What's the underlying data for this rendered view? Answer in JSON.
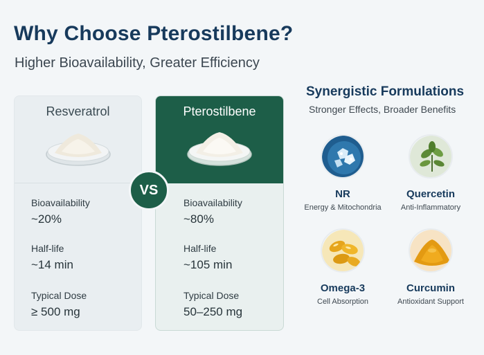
{
  "header": {
    "title": "Why Choose Pterostilbene?",
    "subtitle": "Higher Bioavailability, Greater Efficiency"
  },
  "comparison": {
    "vs_label": "VS",
    "left": {
      "name": "Resveratrol",
      "metrics": [
        {
          "label": "Bioavailability",
          "value": "~20%"
        },
        {
          "label": "Half-life",
          "value": "~14 min"
        },
        {
          "label": "Typical Dose",
          "value": "≥ 500 mg"
        }
      ]
    },
    "right": {
      "name": "Pterostilbene",
      "metrics": [
        {
          "label": "Bioavailability",
          "value": "~80%"
        },
        {
          "label": "Half-life",
          "value": "~105 min"
        },
        {
          "label": "Typical Dose",
          "value": "50–250 mg"
        }
      ]
    },
    "colors": {
      "accent": "#1d5e48",
      "title": "#173a5c"
    }
  },
  "synergy": {
    "title": "Synergistic Formulations",
    "subtitle": "Stronger Effects, Broader Benefits",
    "items": [
      {
        "name": "NR",
        "desc": "Energy & Mitochondria",
        "icon": "nr-crystal-icon"
      },
      {
        "name": "Quercetin",
        "desc": "Anti-Inflammatory",
        "icon": "quercetin-leaf-icon"
      },
      {
        "name": "Omega-3",
        "desc": "Cell Absorption",
        "icon": "omega3-capsule-icon"
      },
      {
        "name": "Curcumin",
        "desc": "Antioxidant Support",
        "icon": "curcumin-powder-icon"
      }
    ]
  }
}
